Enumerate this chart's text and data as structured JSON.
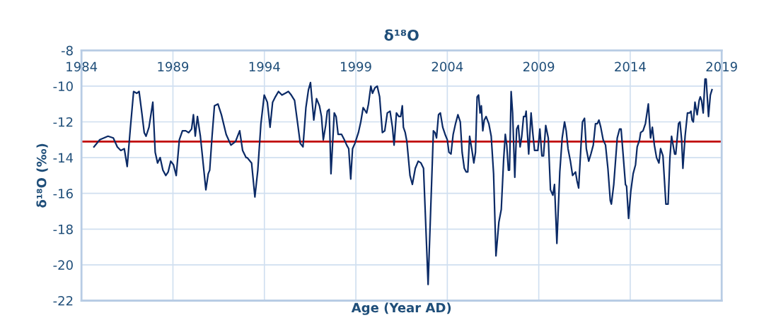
{
  "chart_data": {
    "type": "line",
    "title": "δ¹⁸O",
    "xlabel": "Age (Year AD)",
    "ylabel": "δ¹⁸O (‰)",
    "xlim": [
      1984,
      2019
    ],
    "xticks": [
      1984,
      1989,
      1994,
      1999,
      2004,
      2009,
      2014,
      2019
    ],
    "ylim": [
      -22,
      -8
    ],
    "yticks": [
      -22,
      -20,
      -18,
      -16,
      -14,
      -12,
      -10,
      -8
    ],
    "grid": true,
    "marker": "none",
    "line_style": "solid",
    "ref_lines": [
      {
        "axis": "y",
        "value": -13.1,
        "color": "#c00000"
      }
    ],
    "series": [
      {
        "color": "#0b2a66",
        "x": [
          1984.68,
          1985.0,
          1985.45,
          1985.74,
          1985.96,
          1986.15,
          1986.34,
          1986.5,
          1986.66,
          1986.85,
          1987.02,
          1987.15,
          1987.3,
          1987.43,
          1987.53,
          1987.69,
          1987.9,
          1988.03,
          1988.16,
          1988.3,
          1988.45,
          1988.61,
          1988.74,
          1988.88,
          1989.03,
          1989.18,
          1989.35,
          1989.52,
          1989.7,
          1989.86,
          1990.02,
          1990.12,
          1990.22,
          1990.34,
          1990.5,
          1990.66,
          1990.8,
          1990.93,
          1991.01,
          1991.14,
          1991.27,
          1991.46,
          1991.65,
          1991.91,
          1992.17,
          1992.42,
          1992.65,
          1992.81,
          1993.0,
          1993.06,
          1993.3,
          1993.48,
          1993.64,
          1993.81,
          1993.99,
          1994.16,
          1994.31,
          1994.45,
          1994.6,
          1994.77,
          1994.96,
          1995.14,
          1995.31,
          1995.47,
          1995.65,
          1995.82,
          1995.96,
          1996.11,
          1996.27,
          1996.41,
          1996.52,
          1996.7,
          1996.85,
          1997.01,
          1997.12,
          1997.22,
          1997.35,
          1997.44,
          1997.54,
          1997.64,
          1997.82,
          1997.92,
          1998.03,
          1998.22,
          1998.37,
          1998.5,
          1998.61,
          1998.72,
          1998.82,
          1998.95,
          1999.14,
          1999.27,
          1999.4,
          1999.59,
          1999.69,
          1999.82,
          1999.91,
          2000.04,
          2000.17,
          2000.3,
          2000.45,
          2000.58,
          2000.72,
          2000.87,
          2001.0,
          2001.09,
          2001.22,
          2001.35,
          2001.45,
          2001.54,
          2001.6,
          2001.7,
          2001.79,
          2001.96,
          2002.09,
          2002.25,
          2002.41,
          2002.56,
          2002.7,
          2002.95,
          2003.24,
          2003.33,
          2003.41,
          2003.52,
          2003.62,
          2003.75,
          2003.88,
          2004.0,
          2004.09,
          2004.2,
          2004.32,
          2004.45,
          2004.58,
          2004.71,
          2004.81,
          2004.93,
          2005.03,
          2005.12,
          2005.22,
          2005.35,
          2005.45,
          2005.54,
          2005.63,
          2005.71,
          2005.79,
          2005.86,
          2005.94,
          2006.02,
          2006.12,
          2006.27,
          2006.4,
          2006.53,
          2006.66,
          2006.82,
          2006.95,
          2007.08,
          2007.17,
          2007.25,
          2007.34,
          2007.4,
          2007.49,
          2007.57,
          2007.69,
          2007.79,
          2007.88,
          2007.98,
          2008.07,
          2008.17,
          2008.26,
          2008.31,
          2008.36,
          2008.45,
          2008.58,
          2008.68,
          2008.77,
          2008.87,
          2008.95,
          2009.06,
          2009.17,
          2009.26,
          2009.38,
          2009.52,
          2009.64,
          2009.77,
          2009.86,
          2009.99,
          2010.15,
          2010.28,
          2010.41,
          2010.5,
          2010.6,
          2010.73,
          2010.85,
          2011.01,
          2011.09,
          2011.18,
          2011.31,
          2011.39,
          2011.5,
          2011.6,
          2011.73,
          2011.85,
          2011.98,
          2012.1,
          2012.2,
          2012.29,
          2012.39,
          2012.52,
          2012.65,
          2012.78,
          2012.91,
          2012.97,
          2013.1,
          2013.29,
          2013.42,
          2013.5,
          2013.61,
          2013.74,
          2013.8,
          2013.91,
          2014.03,
          2014.16,
          2014.29,
          2014.38,
          2014.51,
          2014.57,
          2014.7,
          2014.83,
          2014.99,
          2015.11,
          2015.21,
          2015.32,
          2015.44,
          2015.57,
          2015.66,
          2015.79,
          2015.95,
          2016.07,
          2016.17,
          2016.26,
          2016.43,
          2016.49,
          2016.64,
          2016.72,
          2016.81,
          2016.88,
          2017.0,
          2017.13,
          2017.25,
          2017.32,
          2017.38,
          2017.45,
          2017.54,
          2017.66,
          2017.77,
          2017.83,
          2017.9,
          2017.99,
          2018.09,
          2018.15,
          2018.28,
          2018.38,
          2018.47
        ],
        "values": [
          -13.4,
          -13.0,
          -12.8,
          -12.9,
          -13.4,
          -13.6,
          -13.5,
          -14.5,
          -12.5,
          -10.3,
          -10.4,
          -10.3,
          -11.5,
          -12.6,
          -12.8,
          -12.3,
          -10.9,
          -13.7,
          -14.3,
          -14.0,
          -14.7,
          -15.0,
          -14.8,
          -14.2,
          -14.4,
          -15.0,
          -13.0,
          -12.5,
          -12.5,
          -12.6,
          -12.4,
          -11.6,
          -12.8,
          -11.7,
          -12.8,
          -14.4,
          -15.8,
          -14.9,
          -14.7,
          -12.8,
          -11.1,
          -11.0,
          -11.6,
          -12.7,
          -13.3,
          -13.1,
          -12.5,
          -13.6,
          -14.0,
          -14.0,
          -14.3,
          -16.2,
          -14.7,
          -12.1,
          -10.5,
          -10.9,
          -12.3,
          -10.9,
          -10.6,
          -10.3,
          -10.5,
          -10.4,
          -10.3,
          -10.5,
          -10.8,
          -12.1,
          -13.2,
          -13.4,
          -11.2,
          -10.2,
          -9.8,
          -11.9,
          -10.7,
          -11.1,
          -11.7,
          -13.0,
          -12.2,
          -11.4,
          -11.3,
          -14.9,
          -11.5,
          -11.7,
          -12.7,
          -12.7,
          -13.0,
          -13.3,
          -13.5,
          -15.2,
          -13.5,
          -13.2,
          -12.6,
          -12.0,
          -11.2,
          -11.5,
          -11.0,
          -10.0,
          -10.4,
          -10.1,
          -10.0,
          -10.6,
          -12.6,
          -12.5,
          -11.5,
          -11.4,
          -12.3,
          -13.3,
          -11.5,
          -11.7,
          -11.7,
          -11.1,
          -12.3,
          -12.6,
          -13.1,
          -15.0,
          -15.5,
          -14.6,
          -14.2,
          -14.3,
          -14.6,
          -21.1,
          -12.5,
          -12.6,
          -12.9,
          -11.6,
          -11.5,
          -12.3,
          -12.7,
          -13.0,
          -13.7,
          -13.8,
          -12.7,
          -12.1,
          -11.6,
          -12.0,
          -13.7,
          -14.6,
          -14.8,
          -14.8,
          -12.8,
          -13.6,
          -14.3,
          -13.7,
          -10.6,
          -10.5,
          -11.5,
          -11.1,
          -12.5,
          -11.9,
          -11.7,
          -12.1,
          -12.8,
          -14.9,
          -19.5,
          -17.6,
          -16.9,
          -14.1,
          -12.7,
          -13.3,
          -14.7,
          -14.7,
          -10.3,
          -11.5,
          -15.1,
          -12.4,
          -12.2,
          -13.4,
          -12.8,
          -11.7,
          -11.7,
          -11.4,
          -12.3,
          -13.8,
          -11.5,
          -12.7,
          -13.6,
          -13.6,
          -13.6,
          -12.4,
          -13.9,
          -13.9,
          -12.2,
          -12.9,
          -15.8,
          -16.1,
          -15.5,
          -18.8,
          -14.8,
          -12.9,
          -12.0,
          -12.5,
          -13.5,
          -14.2,
          -15.0,
          -14.8,
          -15.3,
          -15.7,
          -13.3,
          -12.0,
          -11.8,
          -13.5,
          -14.2,
          -13.8,
          -13.3,
          -12.1,
          -12.1,
          -11.9,
          -12.3,
          -13.0,
          -13.3,
          -14.6,
          -16.4,
          -16.6,
          -15.5,
          -12.9,
          -12.4,
          -12.4,
          -13.8,
          -15.5,
          -15.6,
          -17.4,
          -15.9,
          -14.9,
          -14.4,
          -13.4,
          -13.0,
          -12.6,
          -12.5,
          -12.1,
          -11.0,
          -12.9,
          -12.3,
          -13.3,
          -14.0,
          -14.3,
          -13.5,
          -13.9,
          -16.6,
          -16.6,
          -14.0,
          -12.8,
          -13.8,
          -13.8,
          -12.1,
          -12.0,
          -13.0,
          -14.6,
          -12.8,
          -11.5,
          -11.5,
          -11.4,
          -11.9,
          -12.0,
          -10.9,
          -11.6,
          -10.8,
          -10.6,
          -10.8,
          -11.5,
          -9.6,
          -9.6,
          -11.7,
          -10.5,
          -10.2
        ]
      }
    ]
  }
}
